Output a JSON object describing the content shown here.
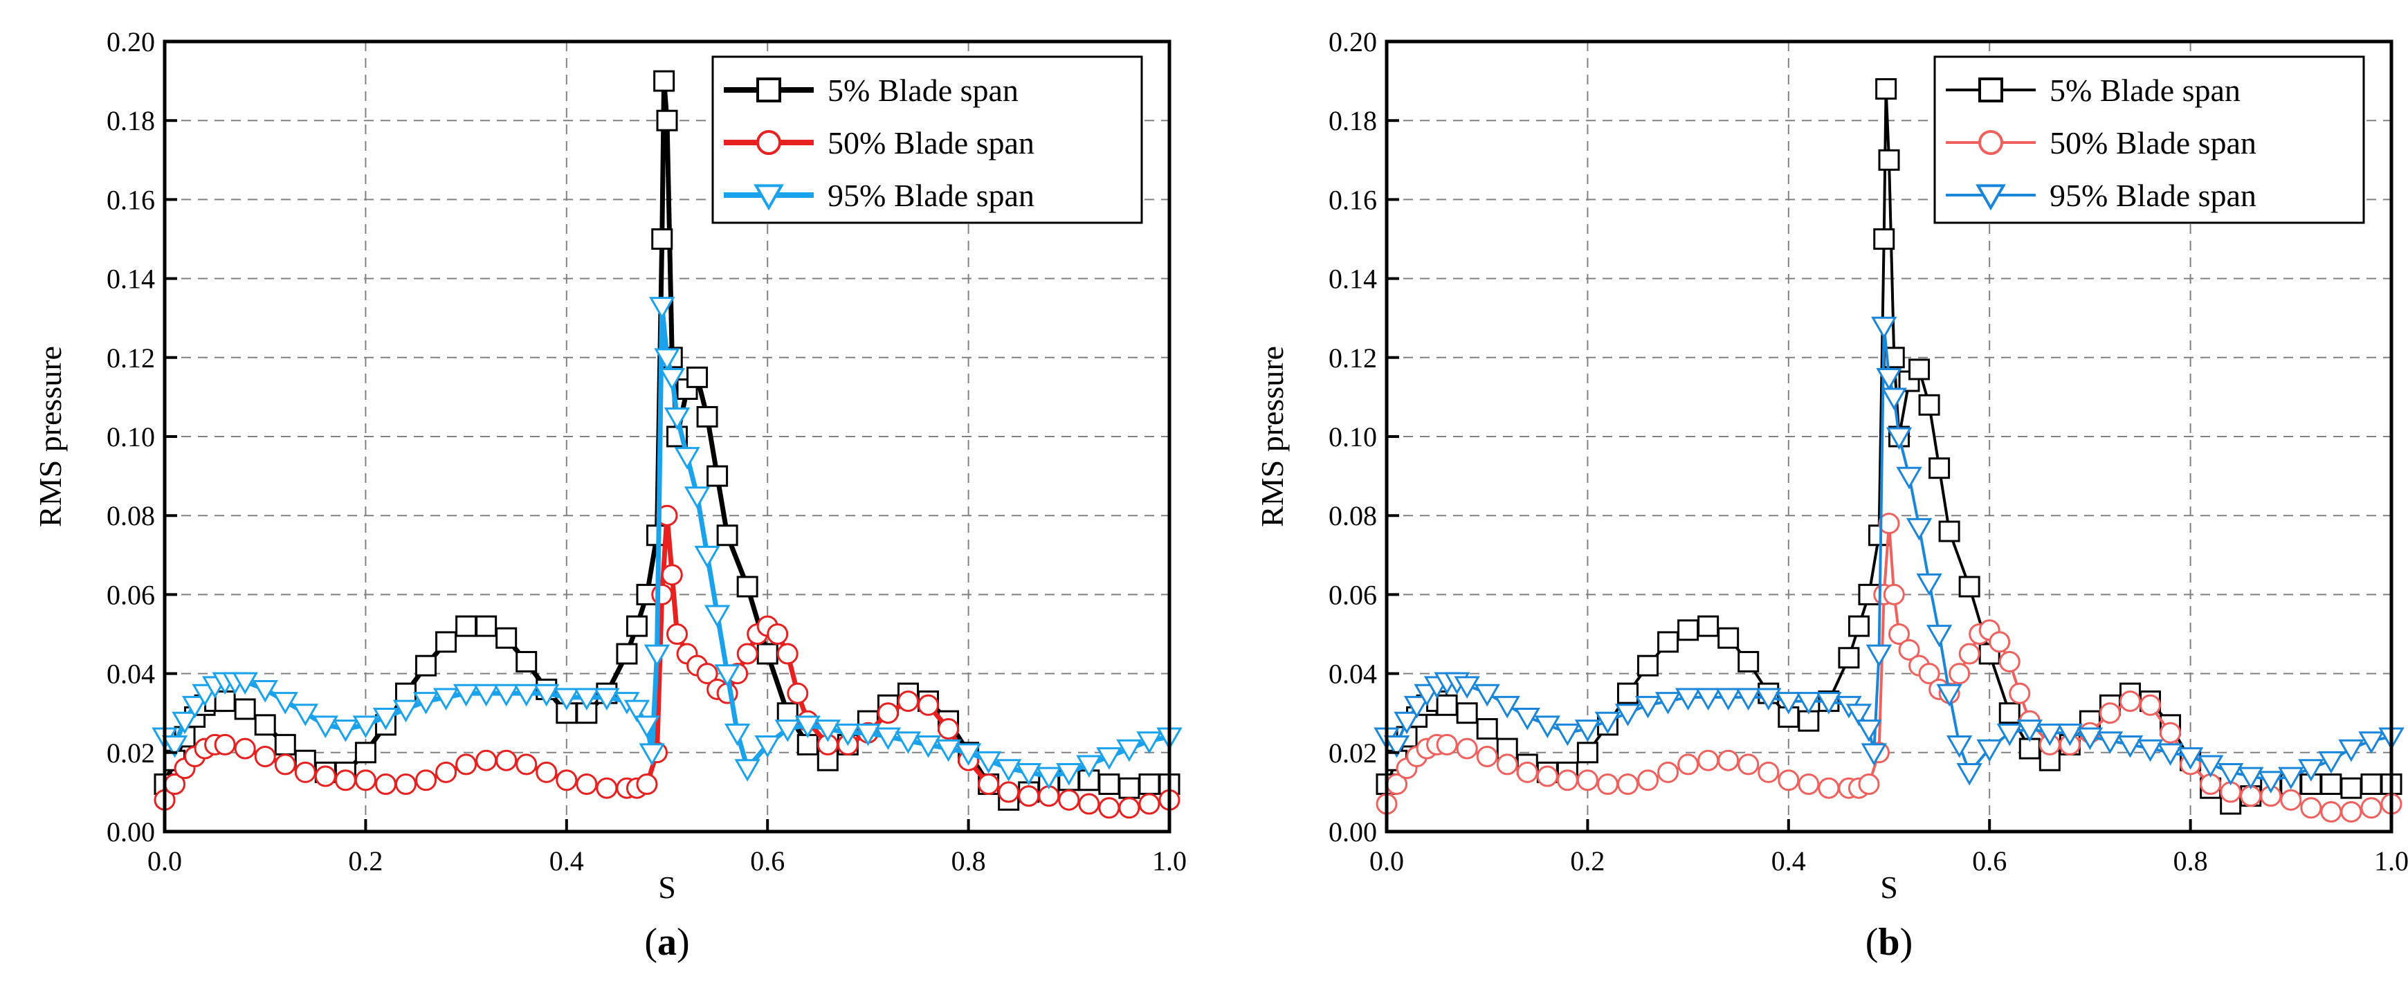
{
  "chart_data": [
    {
      "type": "line",
      "panel": "(a)",
      "caption_open": "(",
      "caption_letter": "a",
      "caption_close": ")",
      "xlabel": "S",
      "ylabel": "RMS pressure",
      "xlim": [
        0.0,
        1.0
      ],
      "ylim": [
        0.0,
        0.2
      ],
      "xticks": [
        "0.0",
        "0.2",
        "0.4",
        "0.6",
        "0.8",
        "1.0"
      ],
      "yticks": [
        "0.00",
        "0.02",
        "0.04",
        "0.06",
        "0.08",
        "0.10",
        "0.12",
        "0.14",
        "0.16",
        "0.18",
        "0.20"
      ],
      "grid": true,
      "legend_position": "top-right",
      "series": [
        {
          "name": "5% Blade span",
          "color": "#000000",
          "marker": "square",
          "line_style": "thick",
          "x": [
            0.0,
            0.01,
            0.02,
            0.03,
            0.04,
            0.05,
            0.06,
            0.08,
            0.1,
            0.12,
            0.14,
            0.16,
            0.18,
            0.2,
            0.22,
            0.24,
            0.26,
            0.28,
            0.3,
            0.32,
            0.34,
            0.36,
            0.38,
            0.4,
            0.42,
            0.44,
            0.46,
            0.47,
            0.48,
            0.49,
            0.495,
            0.497,
            0.5,
            0.505,
            0.51,
            0.52,
            0.53,
            0.54,
            0.55,
            0.56,
            0.58,
            0.6,
            0.62,
            0.64,
            0.66,
            0.68,
            0.7,
            0.72,
            0.74,
            0.76,
            0.78,
            0.8,
            0.82,
            0.84,
            0.86,
            0.88,
            0.9,
            0.92,
            0.94,
            0.96,
            0.98,
            1.0
          ],
          "y": [
            0.012,
            0.018,
            0.024,
            0.029,
            0.032,
            0.033,
            0.033,
            0.031,
            0.027,
            0.022,
            0.018,
            0.015,
            0.015,
            0.02,
            0.027,
            0.035,
            0.042,
            0.048,
            0.052,
            0.052,
            0.049,
            0.043,
            0.036,
            0.03,
            0.03,
            0.035,
            0.045,
            0.052,
            0.06,
            0.075,
            0.15,
            0.19,
            0.18,
            0.12,
            0.1,
            0.112,
            0.115,
            0.105,
            0.09,
            0.075,
            0.062,
            0.045,
            0.03,
            0.022,
            0.018,
            0.022,
            0.028,
            0.032,
            0.035,
            0.033,
            0.028,
            0.02,
            0.012,
            0.008,
            0.01,
            0.012,
            0.013,
            0.013,
            0.012,
            0.011,
            0.012,
            0.012
          ]
        },
        {
          "name": "50% Blade span",
          "color": "#e8201f",
          "marker": "circle",
          "line_style": "thick",
          "x": [
            0.0,
            0.01,
            0.02,
            0.03,
            0.04,
            0.05,
            0.06,
            0.08,
            0.1,
            0.12,
            0.14,
            0.16,
            0.18,
            0.2,
            0.22,
            0.24,
            0.26,
            0.28,
            0.3,
            0.32,
            0.34,
            0.36,
            0.38,
            0.4,
            0.42,
            0.44,
            0.46,
            0.47,
            0.48,
            0.49,
            0.495,
            0.5,
            0.505,
            0.51,
            0.52,
            0.53,
            0.54,
            0.55,
            0.56,
            0.57,
            0.58,
            0.59,
            0.6,
            0.61,
            0.62,
            0.63,
            0.64,
            0.66,
            0.68,
            0.7,
            0.72,
            0.74,
            0.76,
            0.78,
            0.8,
            0.82,
            0.84,
            0.86,
            0.88,
            0.9,
            0.92,
            0.94,
            0.96,
            0.98,
            1.0
          ],
          "y": [
            0.008,
            0.012,
            0.016,
            0.019,
            0.021,
            0.022,
            0.022,
            0.021,
            0.019,
            0.017,
            0.015,
            0.014,
            0.013,
            0.013,
            0.012,
            0.012,
            0.013,
            0.015,
            0.017,
            0.018,
            0.018,
            0.017,
            0.015,
            0.013,
            0.012,
            0.011,
            0.011,
            0.011,
            0.012,
            0.02,
            0.06,
            0.08,
            0.065,
            0.05,
            0.045,
            0.042,
            0.04,
            0.036,
            0.035,
            0.04,
            0.045,
            0.05,
            0.052,
            0.05,
            0.045,
            0.035,
            0.028,
            0.022,
            0.022,
            0.025,
            0.03,
            0.033,
            0.032,
            0.026,
            0.018,
            0.012,
            0.01,
            0.009,
            0.009,
            0.008,
            0.007,
            0.006,
            0.006,
            0.007,
            0.008
          ]
        },
        {
          "name": "95% Blade span",
          "color": "#1aa3ec",
          "marker": "triangle-down",
          "line_style": "thick",
          "x": [
            0.0,
            0.01,
            0.02,
            0.03,
            0.04,
            0.05,
            0.06,
            0.07,
            0.08,
            0.1,
            0.12,
            0.14,
            0.16,
            0.18,
            0.2,
            0.22,
            0.24,
            0.26,
            0.28,
            0.3,
            0.32,
            0.34,
            0.36,
            0.38,
            0.4,
            0.42,
            0.44,
            0.46,
            0.47,
            0.48,
            0.485,
            0.49,
            0.495,
            0.5,
            0.505,
            0.51,
            0.52,
            0.53,
            0.54,
            0.55,
            0.56,
            0.57,
            0.58,
            0.6,
            0.62,
            0.64,
            0.66,
            0.68,
            0.7,
            0.72,
            0.74,
            0.76,
            0.78,
            0.8,
            0.82,
            0.84,
            0.86,
            0.88,
            0.9,
            0.92,
            0.94,
            0.96,
            0.98,
            1.0
          ],
          "y": [
            0.024,
            0.022,
            0.028,
            0.032,
            0.035,
            0.037,
            0.038,
            0.038,
            0.038,
            0.036,
            0.033,
            0.03,
            0.027,
            0.026,
            0.027,
            0.029,
            0.031,
            0.033,
            0.034,
            0.035,
            0.035,
            0.035,
            0.035,
            0.035,
            0.034,
            0.034,
            0.034,
            0.033,
            0.031,
            0.027,
            0.02,
            0.045,
            0.133,
            0.12,
            0.115,
            0.105,
            0.095,
            0.085,
            0.07,
            0.055,
            0.04,
            0.025,
            0.016,
            0.022,
            0.026,
            0.027,
            0.026,
            0.025,
            0.025,
            0.024,
            0.023,
            0.022,
            0.021,
            0.02,
            0.018,
            0.016,
            0.015,
            0.014,
            0.015,
            0.017,
            0.019,
            0.021,
            0.023,
            0.024
          ]
        }
      ]
    },
    {
      "type": "line",
      "panel": "(b)",
      "caption_open": "(",
      "caption_letter": "b",
      "caption_close": ")",
      "xlabel": "S",
      "ylabel": "RMS pressure",
      "xlim": [
        0.0,
        1.0
      ],
      "ylim": [
        0.0,
        0.2
      ],
      "xticks": [
        "0.0",
        "0.2",
        "0.4",
        "0.6",
        "0.8",
        "1.0"
      ],
      "yticks": [
        "0.00",
        "0.02",
        "0.04",
        "0.06",
        "0.08",
        "0.10",
        "0.12",
        "0.14",
        "0.16",
        "0.18",
        "0.20"
      ],
      "grid": true,
      "legend_position": "top-right",
      "series": [
        {
          "name": "5% Blade span",
          "color": "#000000",
          "marker": "square",
          "line_style": "thin",
          "x": [
            0.0,
            0.01,
            0.02,
            0.03,
            0.04,
            0.05,
            0.06,
            0.08,
            0.1,
            0.12,
            0.14,
            0.16,
            0.18,
            0.2,
            0.22,
            0.24,
            0.26,
            0.28,
            0.3,
            0.32,
            0.34,
            0.36,
            0.38,
            0.4,
            0.42,
            0.44,
            0.46,
            0.47,
            0.48,
            0.49,
            0.495,
            0.497,
            0.5,
            0.505,
            0.51,
            0.52,
            0.53,
            0.54,
            0.55,
            0.56,
            0.58,
            0.6,
            0.62,
            0.64,
            0.66,
            0.68,
            0.7,
            0.72,
            0.74,
            0.76,
            0.78,
            0.8,
            0.82,
            0.84,
            0.86,
            0.88,
            0.9,
            0.92,
            0.94,
            0.96,
            0.98,
            1.0
          ],
          "y": [
            0.012,
            0.018,
            0.024,
            0.029,
            0.032,
            0.033,
            0.032,
            0.03,
            0.026,
            0.021,
            0.017,
            0.015,
            0.015,
            0.02,
            0.027,
            0.035,
            0.042,
            0.048,
            0.051,
            0.052,
            0.049,
            0.043,
            0.035,
            0.029,
            0.028,
            0.033,
            0.044,
            0.052,
            0.06,
            0.075,
            0.15,
            0.188,
            0.17,
            0.12,
            0.1,
            0.114,
            0.117,
            0.108,
            0.092,
            0.076,
            0.062,
            0.045,
            0.03,
            0.021,
            0.018,
            0.022,
            0.028,
            0.032,
            0.035,
            0.033,
            0.027,
            0.018,
            0.011,
            0.007,
            0.009,
            0.011,
            0.012,
            0.012,
            0.012,
            0.011,
            0.012,
            0.012
          ]
        },
        {
          "name": "50% Blade span",
          "color": "#f0605c",
          "marker": "circle",
          "line_style": "thin",
          "x": [
            0.0,
            0.01,
            0.02,
            0.03,
            0.04,
            0.05,
            0.06,
            0.08,
            0.1,
            0.12,
            0.14,
            0.16,
            0.18,
            0.2,
            0.22,
            0.24,
            0.26,
            0.28,
            0.3,
            0.32,
            0.34,
            0.36,
            0.38,
            0.4,
            0.42,
            0.44,
            0.46,
            0.47,
            0.48,
            0.49,
            0.495,
            0.5,
            0.505,
            0.51,
            0.52,
            0.53,
            0.54,
            0.55,
            0.56,
            0.57,
            0.58,
            0.59,
            0.6,
            0.61,
            0.62,
            0.63,
            0.64,
            0.66,
            0.68,
            0.7,
            0.72,
            0.74,
            0.76,
            0.78,
            0.8,
            0.82,
            0.84,
            0.86,
            0.88,
            0.9,
            0.92,
            0.94,
            0.96,
            0.98,
            1.0
          ],
          "y": [
            0.007,
            0.012,
            0.016,
            0.019,
            0.021,
            0.022,
            0.022,
            0.021,
            0.019,
            0.017,
            0.015,
            0.014,
            0.013,
            0.013,
            0.012,
            0.012,
            0.013,
            0.015,
            0.017,
            0.018,
            0.018,
            0.017,
            0.015,
            0.013,
            0.012,
            0.011,
            0.011,
            0.011,
            0.012,
            0.02,
            0.06,
            0.078,
            0.06,
            0.05,
            0.046,
            0.042,
            0.04,
            0.036,
            0.035,
            0.04,
            0.045,
            0.05,
            0.051,
            0.048,
            0.043,
            0.035,
            0.028,
            0.022,
            0.022,
            0.025,
            0.03,
            0.033,
            0.032,
            0.025,
            0.017,
            0.012,
            0.01,
            0.009,
            0.009,
            0.008,
            0.006,
            0.005,
            0.005,
            0.006,
            0.007
          ]
        },
        {
          "name": "95% Blade span",
          "color": "#1a86d9",
          "marker": "triangle-down",
          "line_style": "thin",
          "x": [
            0.0,
            0.01,
            0.02,
            0.03,
            0.04,
            0.05,
            0.06,
            0.07,
            0.08,
            0.1,
            0.12,
            0.14,
            0.16,
            0.18,
            0.2,
            0.22,
            0.24,
            0.26,
            0.28,
            0.3,
            0.32,
            0.34,
            0.36,
            0.38,
            0.4,
            0.42,
            0.44,
            0.46,
            0.47,
            0.48,
            0.485,
            0.49,
            0.495,
            0.5,
            0.505,
            0.51,
            0.52,
            0.53,
            0.54,
            0.55,
            0.56,
            0.57,
            0.58,
            0.6,
            0.62,
            0.64,
            0.66,
            0.68,
            0.7,
            0.72,
            0.74,
            0.76,
            0.78,
            0.8,
            0.82,
            0.84,
            0.86,
            0.88,
            0.9,
            0.92,
            0.94,
            0.96,
            0.98,
            1.0
          ],
          "y": [
            0.024,
            0.022,
            0.028,
            0.032,
            0.035,
            0.037,
            0.038,
            0.038,
            0.037,
            0.035,
            0.032,
            0.029,
            0.027,
            0.025,
            0.026,
            0.028,
            0.03,
            0.032,
            0.033,
            0.034,
            0.034,
            0.034,
            0.034,
            0.034,
            0.033,
            0.033,
            0.033,
            0.032,
            0.03,
            0.026,
            0.02,
            0.045,
            0.128,
            0.115,
            0.11,
            0.1,
            0.09,
            0.077,
            0.063,
            0.05,
            0.035,
            0.022,
            0.015,
            0.021,
            0.025,
            0.026,
            0.025,
            0.025,
            0.024,
            0.023,
            0.022,
            0.021,
            0.02,
            0.019,
            0.017,
            0.015,
            0.014,
            0.013,
            0.014,
            0.016,
            0.018,
            0.021,
            0.023,
            0.024
          ]
        }
      ]
    }
  ]
}
